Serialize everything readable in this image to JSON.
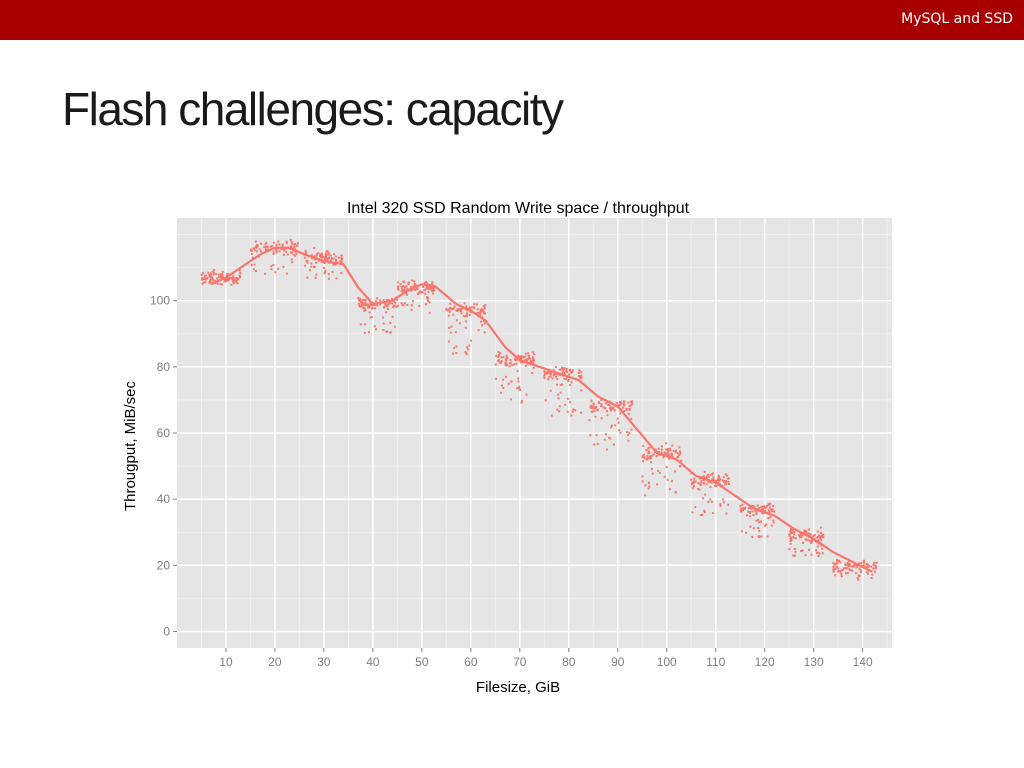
{
  "header": {
    "label": "MySQL and SSD",
    "bar_color": "#a80000"
  },
  "slide": {
    "title": "Flash challenges: capacity"
  },
  "chart_data": {
    "type": "scatter",
    "title": "Intel 320 SSD Random Write space / throughput",
    "xlabel": "Filesize, GiB",
    "ylabel": "Througput, MiB/sec",
    "xlim": [
      0,
      146
    ],
    "ylim": [
      -5,
      125
    ],
    "xticks": [
      10,
      20,
      30,
      40,
      50,
      60,
      70,
      80,
      90,
      100,
      110,
      120,
      130,
      140
    ],
    "yticks": [
      0,
      20,
      40,
      60,
      80,
      100
    ],
    "grid": true,
    "legend": "none",
    "point_color": "#f8766d",
    "line_color": "#f8766d",
    "panel_color": "#e5e5e5",
    "clusters": [
      {
        "x": [
          5,
          13
        ],
        "y": 107,
        "low": 1
      },
      {
        "x": [
          15,
          25
        ],
        "y": 116,
        "low": 4
      },
      {
        "x": [
          26,
          34
        ],
        "y": 113,
        "low": 3
      },
      {
        "x": [
          37,
          45
        ],
        "y": 99,
        "low": 4
      },
      {
        "x": [
          45,
          53
        ],
        "y": 104,
        "low": 4
      },
      {
        "x": [
          55,
          63
        ],
        "y": 97,
        "low": 6
      },
      {
        "x": [
          65,
          73
        ],
        "y": 82,
        "low": 6
      },
      {
        "x": [
          75,
          83
        ],
        "y": 78,
        "low": 6
      },
      {
        "x": [
          84,
          93
        ],
        "y": 68,
        "low": 6
      },
      {
        "x": [
          95,
          103
        ],
        "y": 54,
        "low": 6
      },
      {
        "x": [
          105,
          113
        ],
        "y": 46,
        "low": 5
      },
      {
        "x": [
          115,
          122
        ],
        "y": 37,
        "low": 4
      },
      {
        "x": [
          125,
          132
        ],
        "y": 29,
        "low": 3
      },
      {
        "x": [
          134,
          143
        ],
        "y": 20,
        "low": 2
      }
    ],
    "trend": {
      "x": [
        7,
        10,
        13,
        17,
        20,
        23,
        26,
        30,
        34,
        37,
        40,
        44,
        47,
        50,
        53,
        57,
        60,
        63,
        67,
        70,
        74,
        78,
        82,
        86,
        90,
        94,
        98,
        102,
        106,
        110,
        114,
        118,
        122,
        126,
        130,
        134,
        138,
        142
      ],
      "y": [
        105,
        107,
        110,
        114,
        116,
        116,
        114,
        112,
        111,
        104,
        99,
        100,
        103,
        105,
        104,
        99,
        97,
        94,
        86,
        82,
        80,
        78,
        76,
        71,
        68,
        61,
        54,
        52,
        47,
        45,
        41,
        37,
        35,
        31,
        28,
        24,
        21,
        18
      ]
    }
  }
}
